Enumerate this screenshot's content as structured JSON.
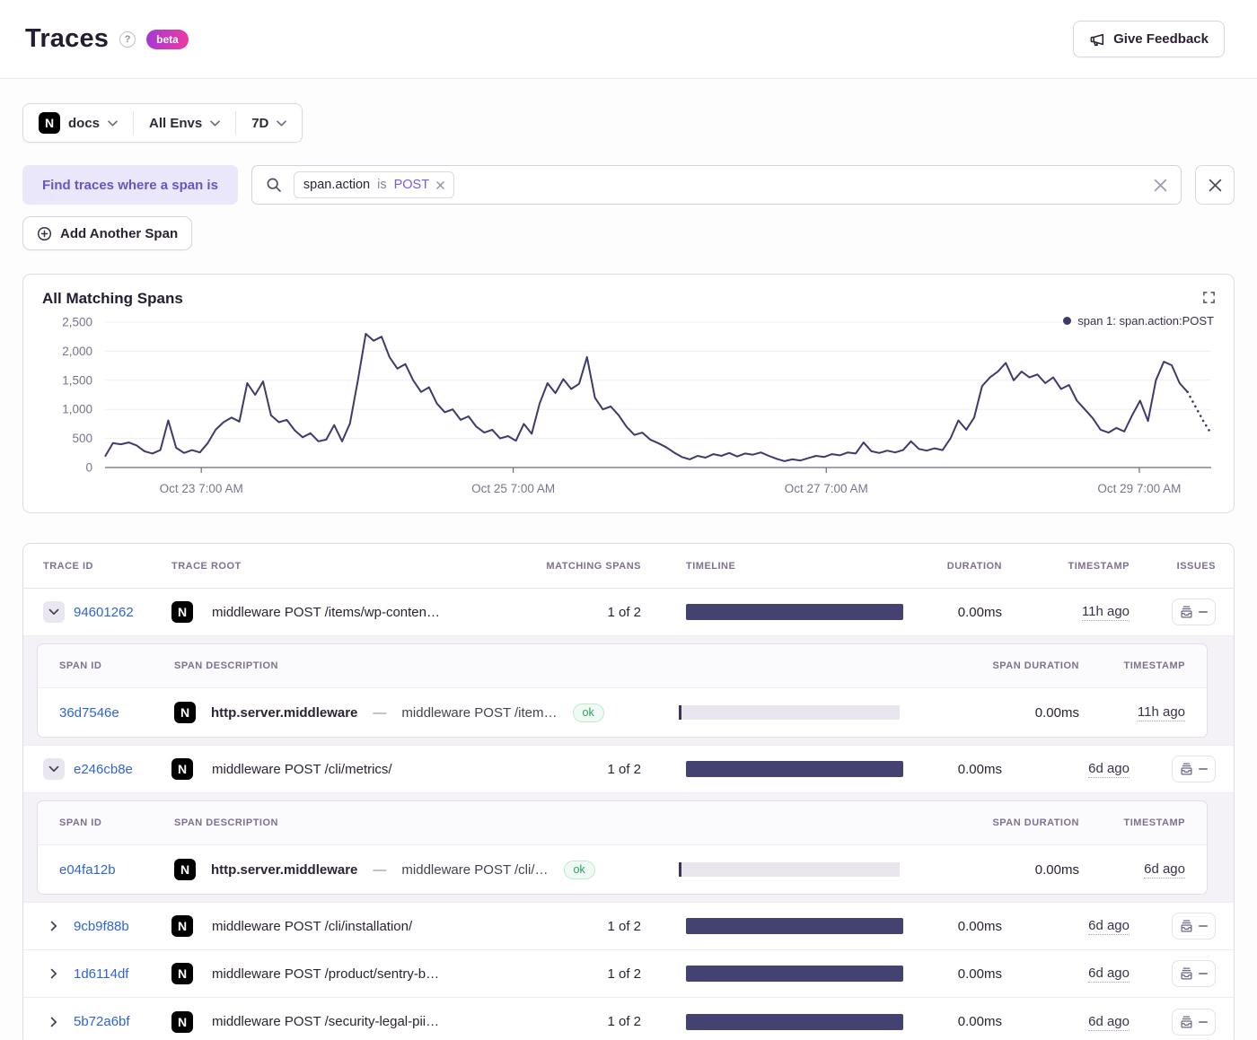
{
  "header": {
    "title": "Traces",
    "help": "?",
    "beta": "beta",
    "feedback": "Give Feedback"
  },
  "filter_bar": {
    "project": "docs",
    "project_icon": "N",
    "environment": "All Envs",
    "date_range": "7D"
  },
  "search": {
    "label": "Find traces where a span is",
    "token": {
      "key": "span.action",
      "operator": "is",
      "value": "POST"
    },
    "add_button": "Add Another Span"
  },
  "chart_data": {
    "type": "line",
    "title": "All Matching Spans",
    "legend": {
      "label": "span 1: span.action:POST",
      "color": "#3b3b6d"
    },
    "line_color": "#3b3b6d",
    "ymax": 2500,
    "yticks": [
      0,
      500,
      1000,
      1500,
      2000,
      2500
    ],
    "ytick_labels": [
      "0",
      "500",
      "1,000",
      "1,500",
      "2,000",
      "2,500"
    ],
    "xticks": [
      {
        "label": "Oct 23 7:00 AM",
        "f": 0.087
      },
      {
        "label": "Oct 25 7:00 AM",
        "f": 0.369
      },
      {
        "label": "Oct 27 7:00 AM",
        "f": 0.652
      },
      {
        "label": "Oct 29 7:00 AM",
        "f": 0.935
      }
    ],
    "dotted_tail_start": 137,
    "values": [
      190,
      420,
      400,
      430,
      380,
      280,
      240,
      300,
      810,
      340,
      250,
      300,
      260,
      420,
      650,
      780,
      860,
      790,
      1450,
      1250,
      1480,
      900,
      780,
      820,
      640,
      520,
      590,
      450,
      480,
      730,
      450,
      760,
      1500,
      2300,
      2180,
      2250,
      1900,
      1700,
      1780,
      1500,
      1300,
      1380,
      1100,
      950,
      1000,
      820,
      880,
      700,
      600,
      650,
      500,
      540,
      460,
      750,
      580,
      1100,
      1450,
      1280,
      1520,
      1350,
      1440,
      1900,
      1200,
      1000,
      1050,
      900,
      700,
      560,
      600,
      480,
      420,
      350,
      260,
      180,
      140,
      200,
      170,
      230,
      200,
      250,
      190,
      240,
      220,
      260,
      200,
      150,
      110,
      140,
      120,
      160,
      200,
      180,
      230,
      210,
      260,
      240,
      430,
      280,
      250,
      290,
      260,
      300,
      450,
      320,
      290,
      330,
      300,
      500,
      810,
      650,
      860,
      1400,
      1550,
      1650,
      1800,
      1500,
      1650,
      1550,
      1600,
      1450,
      1550,
      1350,
      1420,
      1150,
      1000,
      850,
      650,
      600,
      680,
      620,
      900,
      1150,
      800,
      1500,
      1820,
      1760,
      1450,
      1300,
      1050,
      800,
      580
    ]
  },
  "table": {
    "headers": {
      "trace_id": "TRACE ID",
      "trace_root": "TRACE ROOT",
      "matching": "MATCHING SPANS",
      "timeline": "TIMELINE",
      "duration": "DURATION",
      "timestamp": "TIMESTAMP",
      "issues": "ISSUES"
    },
    "span_headers": {
      "span_id": "SPAN ID",
      "desc": "SPAN DESCRIPTION",
      "duration": "SPAN DURATION",
      "timestamp": "TIMESTAMP"
    },
    "rows": [
      {
        "trace_id": "94601262",
        "root": "middleware POST /items/wp-conten…",
        "matching": "1 of 2",
        "duration": "0.00ms",
        "timestamp": "11h ago",
        "spans": [
          {
            "span_id": "36d7546e",
            "op": "http.server.middleware",
            "sep": "—",
            "desc": "middleware POST /item…",
            "status": "ok",
            "duration": "0.00ms",
            "timestamp": "11h ago"
          }
        ]
      },
      {
        "trace_id": "e246cb8e",
        "root": "middleware POST /cli/metrics/",
        "matching": "1 of 2",
        "duration": "0.00ms",
        "timestamp": "6d ago",
        "spans": [
          {
            "span_id": "e04fa12b",
            "op": "http.server.middleware",
            "sep": "—",
            "desc": "middleware POST /cli/…",
            "status": "ok",
            "duration": "0.00ms",
            "timestamp": "6d ago"
          }
        ]
      },
      {
        "trace_id": "9cb9f88b",
        "root": "middleware POST /cli/installation/",
        "matching": "1 of 2",
        "duration": "0.00ms",
        "timestamp": "6d ago",
        "spans": []
      },
      {
        "trace_id": "1d6114df",
        "root": "middleware POST /product/sentry-b…",
        "matching": "1 of 2",
        "duration": "0.00ms",
        "timestamp": "6d ago",
        "spans": []
      },
      {
        "trace_id": "5b72a6bf",
        "root": "middleware POST /security-legal-pii…",
        "matching": "1 of 2",
        "duration": "0.00ms",
        "timestamp": "6d ago",
        "spans": []
      }
    ]
  }
}
